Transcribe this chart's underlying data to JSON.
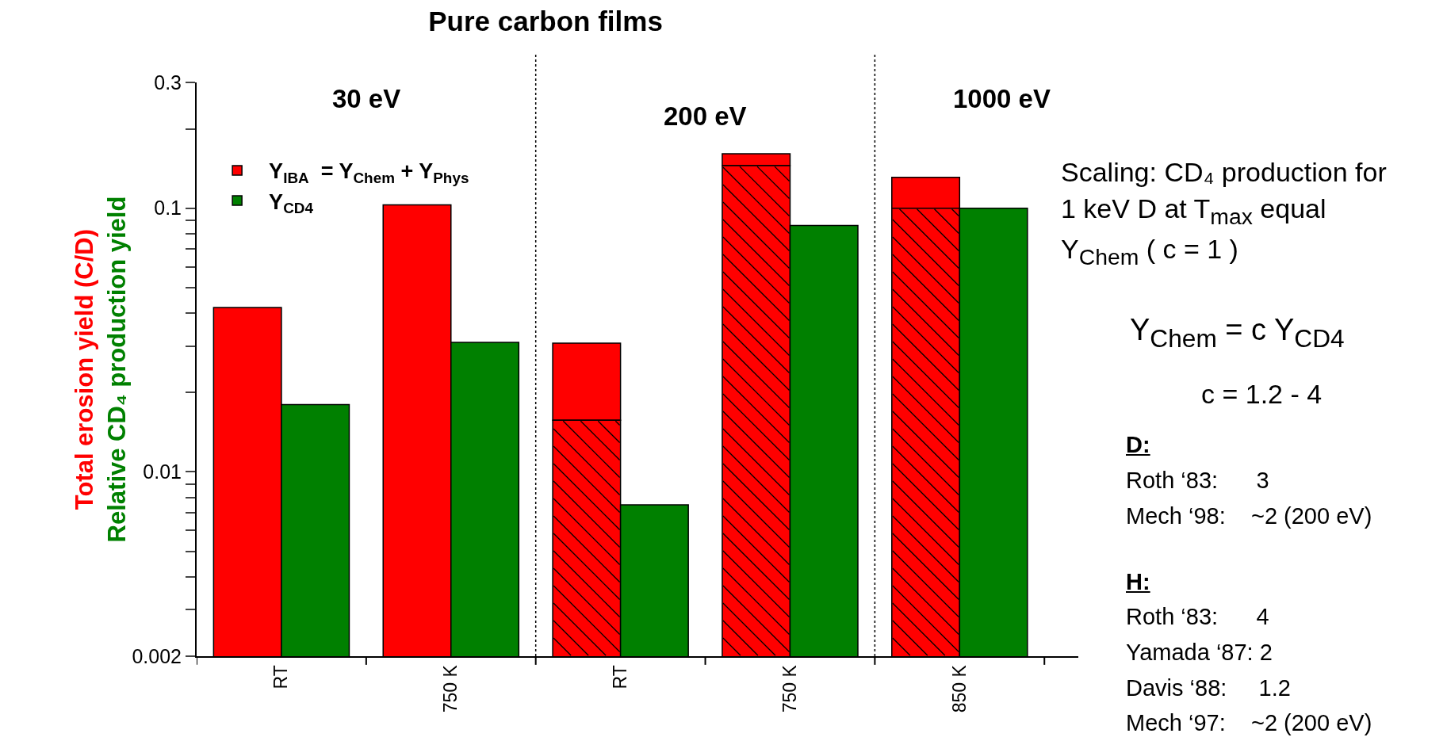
{
  "chart_data": {
    "type": "bar",
    "title": "Pure carbon films",
    "ylabel": "Total erosion yield (C/D)\nRelative CD₄ production yield",
    "categories": [
      "RT",
      "750 K",
      "RT",
      "750 K",
      "850 K"
    ],
    "series": [
      {
        "name": "Y$_{IBA}$  = Y$_{Chem}$ + Y$_{Phys}$",
        "color": "#ff0000",
        "values": [
          0.042,
          0.103,
          0.0151,
          0.016,
          0.031
        ],
        "base": [
          null,
          null,
          0.0157,
          0.145,
          0.1
        ]
      },
      {
        "color": "#ff0000",
        "values": [
          null,
          null,
          0.0157,
          0.145,
          0.1
        ]
      },
      {
        "name": "Y$_{CD4}$",
        "color": "#008000",
        "values": [
          0.018,
          0.031,
          0.0075,
          0.086,
          0.1
        ]
      }
    ],
    "log": "y",
    "ylim": [
      0.002,
      0.3
    ],
    "yticks": [
      0.002,
      {
        "value": 0.003,
        "label": null
      },
      {
        "value": 0.004,
        "label": null
      },
      {
        "value": 0.005,
        "label": null
      },
      {
        "value": 0.006,
        "label": null
      },
      {
        "value": 0.007,
        "label": null
      },
      {
        "value": 0.008,
        "label": null
      },
      {
        "value": 0.009,
        "label": null
      },
      0.01,
      {
        "value": 0.02,
        "label": null
      },
      {
        "value": 0.03,
        "label": null
      },
      {
        "value": 0.04,
        "label": null
      },
      {
        "value": 0.05,
        "label": null
      },
      {
        "value": 0.06,
        "label": null
      },
      {
        "value": 0.07,
        "label": null
      },
      {
        "value": 0.08,
        "label": null
      },
      {
        "value": 0.09,
        "label": null
      },
      0.1,
      {
        "value": 0.2,
        "label": null
      },
      0.3
    ],
    "grid": false,
    "legend": "top left",
    "annotations": [
      "30 eV",
      "200 eV",
      "1000 eV",
      "Scaling: CD₄ production for 1 keV D at T$_{max}$ equal Y$_{Chem}$  ( c = 1 )",
      "Y$_{Chem}$ = c Y$_{CD4}$",
      "c = 1.2 - 4",
      "D:",
      "Roth ‘83:      3",
      "Mech ‘98:    ~2 (200 eV)",
      "H:",
      "Roth ‘83:      4",
      "Yamada ‘87: 2",
      "Davis ‘88:     1.2",
      "Mech ‘97:    ~2 (200 eV)"
    ]
  }
}
